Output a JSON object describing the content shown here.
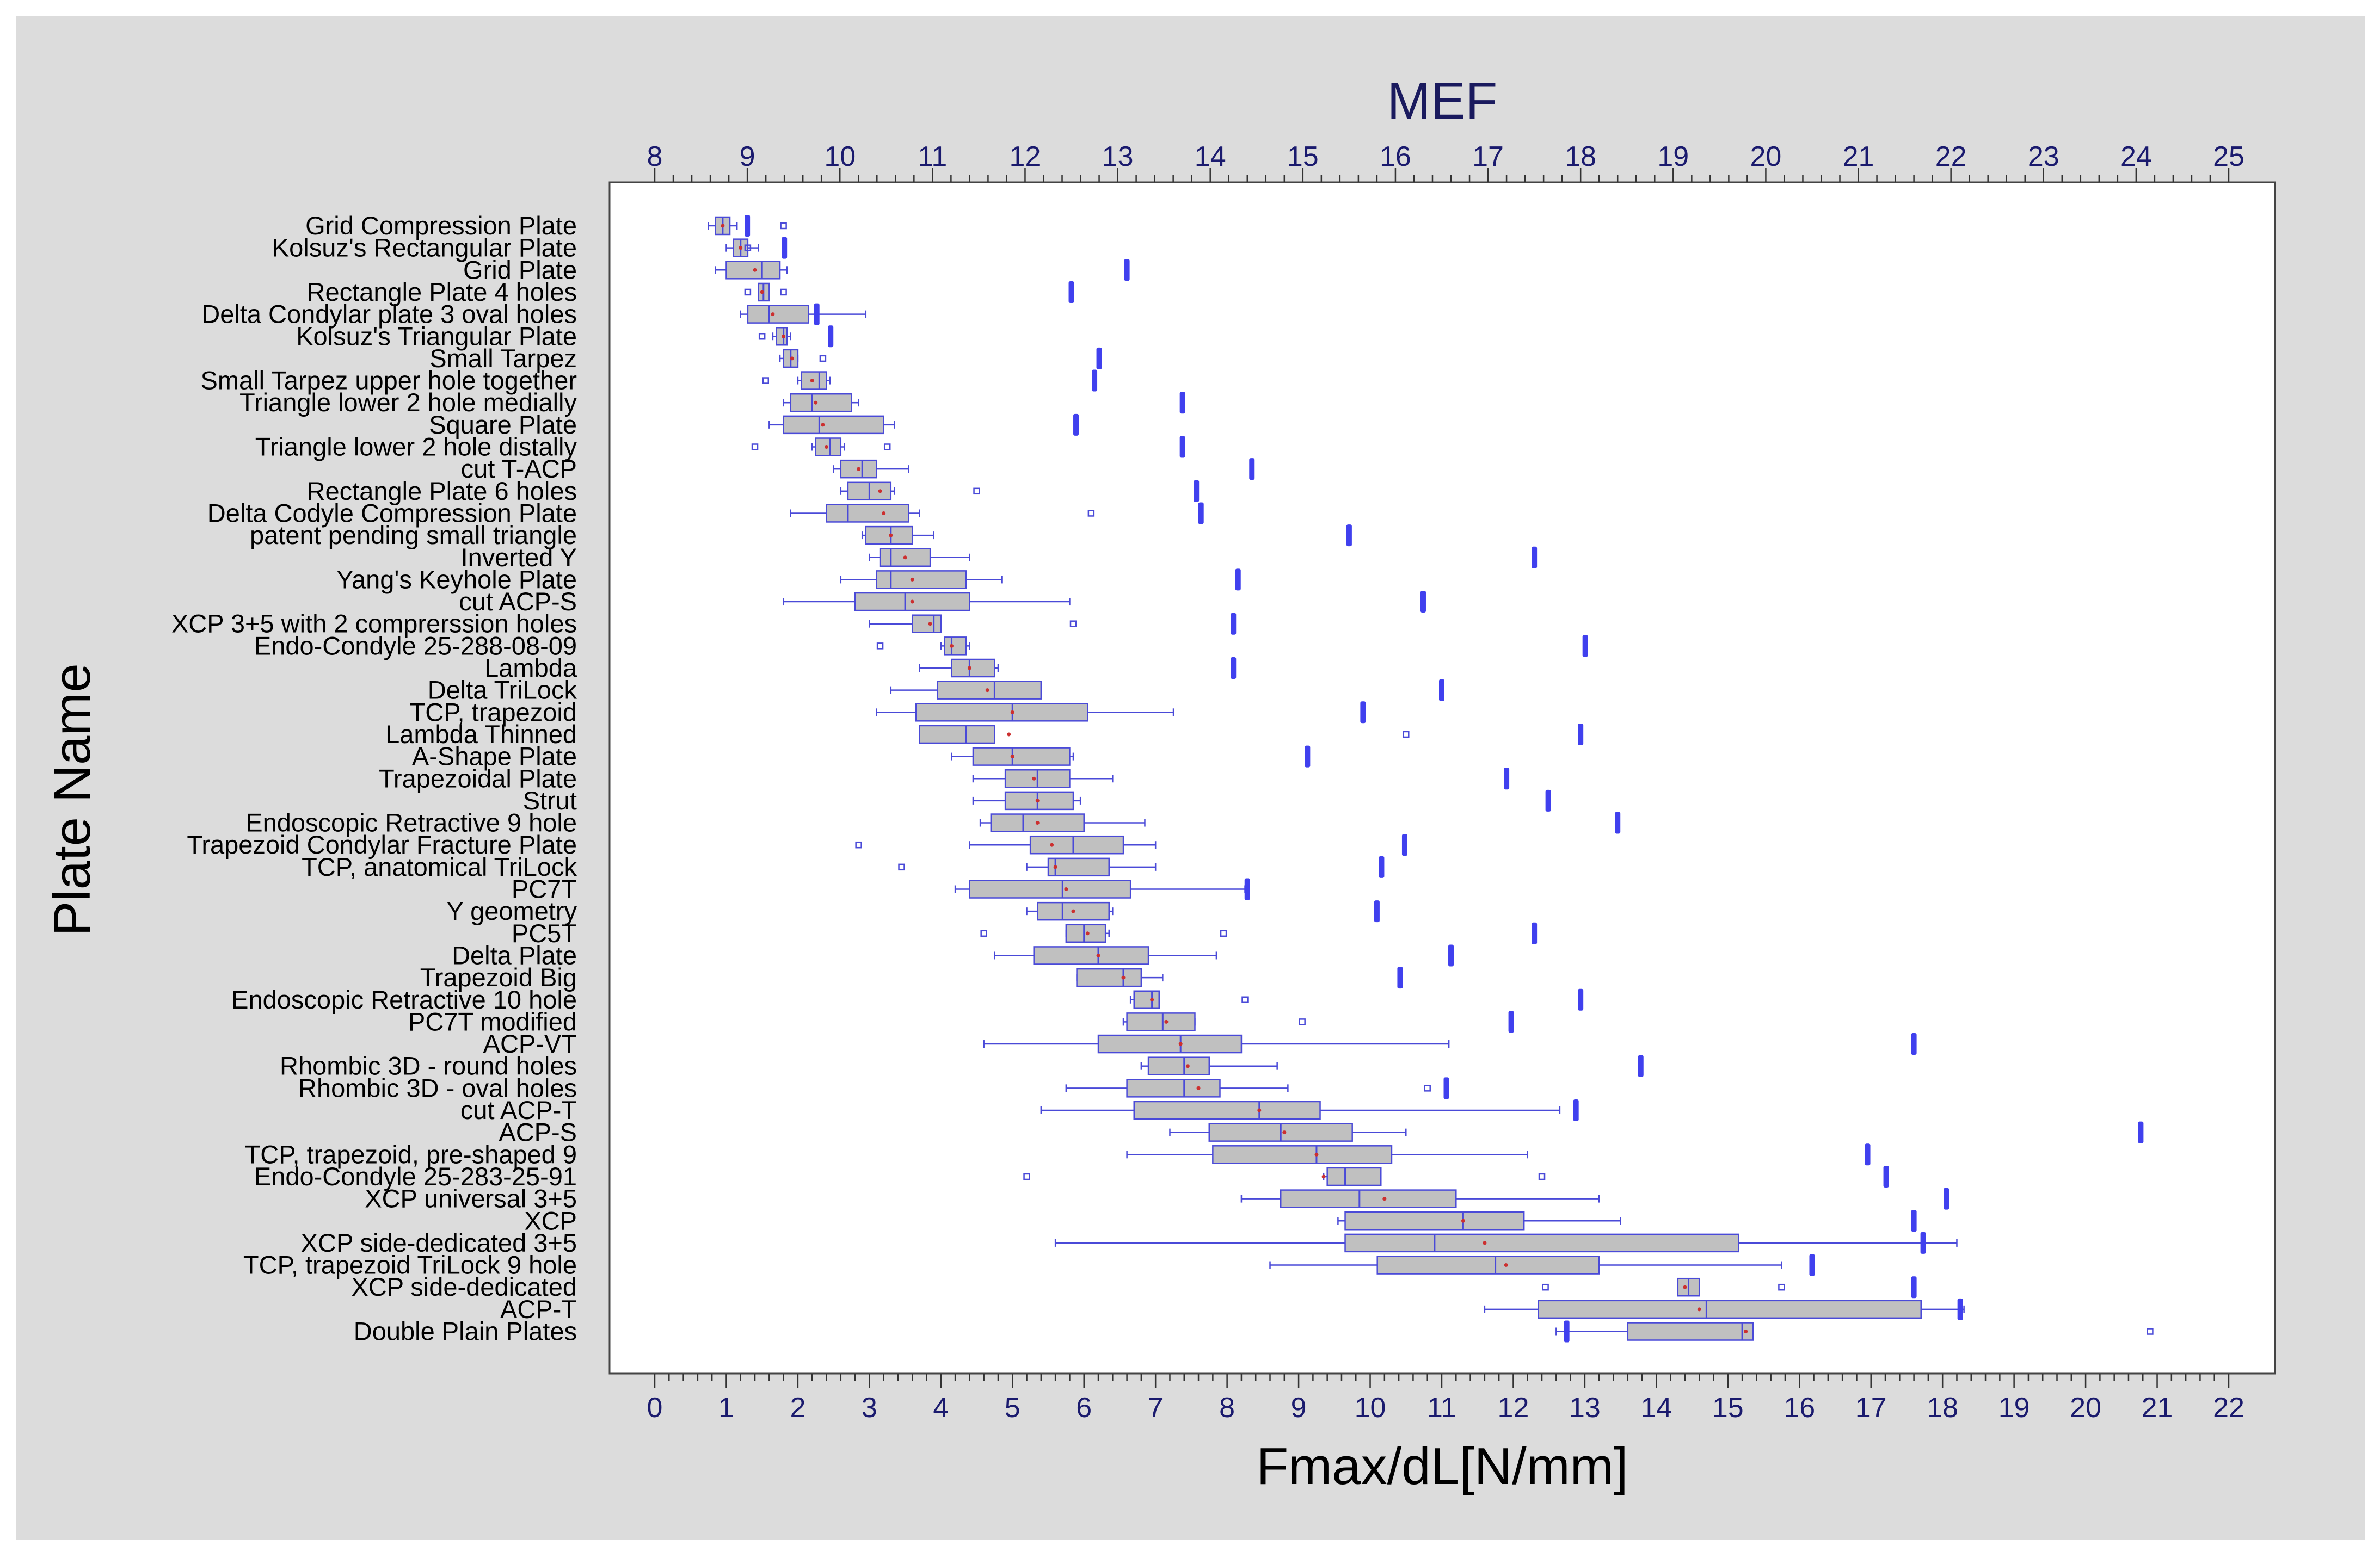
{
  "chart_data": {
    "type": "boxplot",
    "orientation": "horizontal",
    "top_axis": {
      "title": "MEF",
      "range": [
        8,
        25
      ],
      "ticks": [
        "8",
        "9",
        "10",
        "11",
        "12",
        "13",
        "14",
        "15",
        "16",
        "17",
        "18",
        "19",
        "20",
        "21",
        "22",
        "23",
        "24",
        "25"
      ]
    },
    "bottom_axis": {
      "title": "Fmax/dL[N/mm]",
      "range": [
        0,
        22
      ],
      "ticks": [
        "0",
        "1",
        "2",
        "3",
        "4",
        "5",
        "6",
        "7",
        "8",
        "9",
        "10",
        "11",
        "12",
        "13",
        "14",
        "15",
        "16",
        "17",
        "18",
        "19",
        "20",
        "21",
        "22"
      ]
    },
    "ylabel": "Plate Name",
    "grid": false,
    "colors": {
      "background": "#dcdcdc",
      "plot_background": "#ffffff",
      "box_fill": "#c0c0c0",
      "box_stroke": "#4a4ad8",
      "whisker": "#4a4ad8",
      "outlier": "#4a4ad8",
      "mef_marker": "#4040ee",
      "mean_marker": "#cc3030",
      "axis_title_top": "#1a1a5e",
      "tick_label": "#1a1a6e",
      "text": "#000000"
    },
    "plates": [
      {
        "name": "Grid Compression Plate",
        "q1": 0.85,
        "median": 0.95,
        "q3": 1.05,
        "min": 0.75,
        "max": 1.15,
        "mean": 0.95,
        "outliers": [
          1.8
        ],
        "mef": 9.0
      },
      {
        "name": "Kolsuz's Rectangular Plate",
        "q1": 1.1,
        "median": 1.2,
        "q3": 1.3,
        "min": 1.0,
        "max": 1.45,
        "mean": 1.2,
        "outliers": [
          1.3
        ],
        "mef": 9.4
      },
      {
        "name": "Grid Plate",
        "q1": 1.0,
        "median": 1.5,
        "q3": 1.75,
        "min": 0.85,
        "max": 1.85,
        "mean": 1.4,
        "outliers": [],
        "mef": 13.1
      },
      {
        "name": "Rectangle Plate 4 holes",
        "q1": 1.45,
        "median": 1.52,
        "q3": 1.6,
        "min": 1.45,
        "max": 1.6,
        "mean": 1.5,
        "outliers": [
          1.3,
          1.8
        ],
        "mef": 12.5
      },
      {
        "name": "Delta Condylar plate 3 oval holes",
        "q1": 1.3,
        "median": 1.6,
        "q3": 2.15,
        "min": 1.2,
        "max": 2.95,
        "mean": 1.65,
        "outliers": [],
        "mef": 9.75
      },
      {
        "name": "Kolsuz's Triangular Plate",
        "q1": 1.7,
        "median": 1.8,
        "q3": 1.85,
        "min": 1.65,
        "max": 1.9,
        "mean": 1.8,
        "outliers": [
          1.5
        ],
        "mef": 9.9
      },
      {
        "name": "Small Tarpez",
        "q1": 1.8,
        "median": 1.9,
        "q3": 2.0,
        "min": 1.75,
        "max": 2.0,
        "mean": 1.92,
        "outliers": [
          2.35
        ],
        "mef": 12.8
      },
      {
        "name": "Small Tarpez upper hole together",
        "q1": 2.05,
        "median": 2.3,
        "q3": 2.4,
        "min": 2.0,
        "max": 2.45,
        "mean": 2.2,
        "outliers": [
          1.55
        ],
        "mef": 12.75
      },
      {
        "name": "Triangle lower 2 hole medially",
        "q1": 1.9,
        "median": 2.2,
        "q3": 2.75,
        "min": 1.8,
        "max": 2.85,
        "mean": 2.25,
        "outliers": [],
        "mef": 13.7
      },
      {
        "name": "Square Plate",
        "q1": 1.8,
        "median": 2.3,
        "q3": 3.2,
        "min": 1.6,
        "max": 3.35,
        "mean": 2.35,
        "outliers": [],
        "mef": 12.55
      },
      {
        "name": "Triangle lower 2 hole distally",
        "q1": 2.25,
        "median": 2.45,
        "q3": 2.6,
        "min": 2.2,
        "max": 2.65,
        "mean": 2.4,
        "outliers": [
          1.4,
          3.25
        ],
        "mef": 13.7
      },
      {
        "name": "cut T-ACP",
        "q1": 2.6,
        "median": 2.9,
        "q3": 3.1,
        "min": 2.5,
        "max": 3.55,
        "mean": 2.85,
        "outliers": [],
        "mef": 14.45
      },
      {
        "name": "Rectangle Plate 6 holes",
        "q1": 2.7,
        "median": 3.0,
        "q3": 3.3,
        "min": 2.6,
        "max": 3.35,
        "mean": 3.15,
        "outliers": [
          4.5
        ],
        "mef": 13.85
      },
      {
        "name": "Delta Codyle Compression Plate",
        "q1": 2.4,
        "median": 2.7,
        "q3": 3.55,
        "min": 1.9,
        "max": 3.7,
        "mean": 3.2,
        "outliers": [
          6.1
        ],
        "mef": 13.9
      },
      {
        "name": "patent pending small triangle",
        "q1": 2.95,
        "median": 3.3,
        "q3": 3.6,
        "min": 2.9,
        "max": 3.9,
        "mean": 3.3,
        "outliers": [],
        "mef": 15.5
      },
      {
        "name": "Inverted Y",
        "q1": 3.15,
        "median": 3.3,
        "q3": 3.85,
        "min": 3.0,
        "max": 4.4,
        "mean": 3.5,
        "outliers": [],
        "mef": 17.5
      },
      {
        "name": "Yang's Keyhole Plate",
        "q1": 3.1,
        "median": 3.3,
        "q3": 4.35,
        "min": 2.6,
        "max": 4.85,
        "mean": 3.6,
        "outliers": [],
        "mef": 14.3
      },
      {
        "name": "cut ACP-S",
        "q1": 2.8,
        "median": 3.5,
        "q3": 4.4,
        "min": 1.8,
        "max": 5.8,
        "mean": 3.6,
        "outliers": [],
        "mef": 16.3
      },
      {
        "name": "XCP 3+5 with 2 comprerssion holes",
        "q1": 3.6,
        "median": 3.9,
        "q3": 4.0,
        "min": 3.0,
        "max": 4.0,
        "mean": 3.85,
        "outliers": [
          5.85
        ],
        "mef": 14.25
      },
      {
        "name": "Endo-Condyle 25-288-08-09",
        "q1": 4.05,
        "median": 4.15,
        "q3": 4.35,
        "min": 4.0,
        "max": 4.4,
        "mean": 4.15,
        "outliers": [
          3.15
        ],
        "mef": 18.05
      },
      {
        "name": "Lambda",
        "q1": 4.15,
        "median": 4.4,
        "q3": 4.75,
        "min": 3.7,
        "max": 4.8,
        "mean": 4.4,
        "outliers": [],
        "mef": 14.25
      },
      {
        "name": "Delta TriLock",
        "q1": 3.95,
        "median": 4.75,
        "q3": 5.4,
        "min": 3.3,
        "max": 5.4,
        "mean": 4.65,
        "outliers": [],
        "mef": 16.5
      },
      {
        "name": "TCP, trapezoid",
        "q1": 3.65,
        "median": 5.0,
        "q3": 6.05,
        "min": 3.1,
        "max": 7.25,
        "mean": 5.0,
        "outliers": [],
        "mef": 15.65
      },
      {
        "name": "Lambda Thinned",
        "q1": 3.7,
        "median": 4.35,
        "q3": 4.75,
        "min": 3.7,
        "max": 4.75,
        "mean": 4.95,
        "outliers": [
          10.5
        ],
        "mef": 18.0
      },
      {
        "name": "A-Shape Plate",
        "q1": 4.45,
        "median": 5.0,
        "q3": 5.8,
        "min": 4.15,
        "max": 5.85,
        "mean": 5.0,
        "outliers": [],
        "mef": 15.05
      },
      {
        "name": "Trapezoidal Plate",
        "q1": 4.9,
        "median": 5.35,
        "q3": 5.8,
        "min": 4.45,
        "max": 6.4,
        "mean": 5.3,
        "outliers": [],
        "mef": 17.2
      },
      {
        "name": "Strut",
        "q1": 4.9,
        "median": 5.35,
        "q3": 5.85,
        "min": 4.45,
        "max": 5.95,
        "mean": 5.35,
        "outliers": [],
        "mef": 17.65
      },
      {
        "name": "Endoscopic Retractive 9 hole",
        "q1": 4.7,
        "median": 5.15,
        "q3": 6.0,
        "min": 4.55,
        "max": 6.85,
        "mean": 5.35,
        "outliers": [],
        "mef": 18.4
      },
      {
        "name": "Trapezoid Condylar Fracture Plate",
        "q1": 5.25,
        "median": 5.85,
        "q3": 6.55,
        "min": 4.4,
        "max": 7.0,
        "mean": 5.55,
        "outliers": [
          2.85
        ],
        "mef": 16.1
      },
      {
        "name": "TCP, anatomical TriLock",
        "q1": 5.5,
        "median": 5.6,
        "q3": 6.35,
        "min": 5.2,
        "max": 7.0,
        "mean": 5.6,
        "outliers": [
          3.45
        ],
        "mef": 15.85
      },
      {
        "name": "PC7T",
        "q1": 4.4,
        "median": 5.7,
        "q3": 6.65,
        "min": 4.2,
        "max": 8.25,
        "mean": 5.75,
        "outliers": [],
        "mef": 14.4
      },
      {
        "name": "Y geometry",
        "q1": 5.35,
        "median": 5.7,
        "q3": 6.35,
        "min": 5.2,
        "max": 6.4,
        "mean": 5.85,
        "outliers": [],
        "mef": 15.8
      },
      {
        "name": "PC5T",
        "q1": 5.75,
        "median": 6.0,
        "q3": 6.3,
        "min": 5.75,
        "max": 6.35,
        "mean": 6.05,
        "outliers": [
          4.6,
          7.95
        ],
        "mef": 17.5
      },
      {
        "name": "Delta Plate",
        "q1": 5.3,
        "median": 6.2,
        "q3": 6.9,
        "min": 4.75,
        "max": 7.85,
        "mean": 6.2,
        "outliers": [],
        "mef": 16.6
      },
      {
        "name": "Trapezoid Big",
        "q1": 5.9,
        "median": 6.55,
        "q3": 6.8,
        "min": 5.9,
        "max": 7.1,
        "mean": 6.55,
        "outliers": [],
        "mef": 16.05
      },
      {
        "name": "Endoscopic Retractive 10 hole",
        "q1": 6.7,
        "median": 6.95,
        "q3": 7.05,
        "min": 6.65,
        "max": 7.05,
        "mean": 6.95,
        "outliers": [
          8.25
        ],
        "mef": 18.0
      },
      {
        "name": "PC7T modified",
        "q1": 6.6,
        "median": 7.1,
        "q3": 7.55,
        "min": 6.55,
        "max": 7.55,
        "mean": 7.15,
        "outliers": [
          9.05
        ],
        "mef": 17.25
      },
      {
        "name": "ACP-VT",
        "q1": 6.2,
        "median": 7.35,
        "q3": 8.2,
        "min": 4.6,
        "max": 11.1,
        "mean": 7.35,
        "outliers": [],
        "mef": 21.6
      },
      {
        "name": "Rhombic 3D - round holes",
        "q1": 6.9,
        "median": 7.4,
        "q3": 7.75,
        "min": 6.8,
        "max": 8.7,
        "mean": 7.45,
        "outliers": [],
        "mef": 18.65
      },
      {
        "name": "Rhombic 3D - oval holes",
        "q1": 6.6,
        "median": 7.4,
        "q3": 7.9,
        "min": 5.75,
        "max": 8.85,
        "mean": 7.6,
        "outliers": [
          10.8
        ],
        "mef": 16.55
      },
      {
        "name": "cut ACP-T",
        "q1": 6.7,
        "median": 8.45,
        "q3": 9.3,
        "min": 5.4,
        "max": 12.65,
        "mean": 8.45,
        "outliers": [],
        "mef": 17.95
      },
      {
        "name": "ACP-S",
        "q1": 7.75,
        "median": 8.75,
        "q3": 9.75,
        "min": 7.2,
        "max": 10.5,
        "mean": 8.8,
        "outliers": [],
        "mef": 24.05
      },
      {
        "name": "TCP, trapezoid, pre-shaped 9",
        "q1": 7.8,
        "median": 9.25,
        "q3": 10.3,
        "min": 6.6,
        "max": 12.2,
        "mean": 9.25,
        "outliers": [],
        "mef": 21.1
      },
      {
        "name": "Endo-Condyle 25-283-25-91",
        "q1": 9.4,
        "median": 9.65,
        "q3": 10.15,
        "min": 9.35,
        "max": 10.15,
        "mean": 9.35,
        "outliers": [
          5.2,
          12.4
        ],
        "mef": 21.3
      },
      {
        "name": "XCP universal 3+5",
        "q1": 8.75,
        "median": 9.85,
        "q3": 11.2,
        "min": 8.2,
        "max": 13.2,
        "mean": 10.2,
        "outliers": [],
        "mef": 21.95
      },
      {
        "name": "XCP",
        "q1": 9.65,
        "median": 11.3,
        "q3": 12.15,
        "min": 9.55,
        "max": 13.5,
        "mean": 11.3,
        "outliers": [],
        "mef": 21.6
      },
      {
        "name": "XCP side-dedicated 3+5",
        "q1": 9.65,
        "median": 10.9,
        "q3": 15.15,
        "min": 5.6,
        "max": 18.2,
        "mean": 11.6,
        "outliers": [],
        "mef": 21.7
      },
      {
        "name": "TCP, trapezoid TriLock 9 hole",
        "q1": 10.1,
        "median": 11.75,
        "q3": 13.2,
        "min": 8.6,
        "max": 15.75,
        "mean": 11.9,
        "outliers": [],
        "mef": 20.5
      },
      {
        "name": "XCP side-dedicated",
        "q1": 14.3,
        "median": 14.45,
        "q3": 14.6,
        "min": 14.3,
        "max": 14.6,
        "mean": 14.4,
        "outliers": [
          12.45,
          15.75
        ],
        "mef": 21.6
      },
      {
        "name": "ACP-T",
        "q1": 12.35,
        "median": 14.7,
        "q3": 17.7,
        "min": 11.6,
        "max": 18.3,
        "mean": 14.6,
        "outliers": [],
        "mef": 22.1
      },
      {
        "name": "Double Plain Plates",
        "q1": 13.6,
        "median": 15.2,
        "q3": 15.35,
        "min": 12.6,
        "max": 15.35,
        "mean": 15.25,
        "outliers": [
          20.9
        ],
        "mef": 17.85
      }
    ]
  }
}
